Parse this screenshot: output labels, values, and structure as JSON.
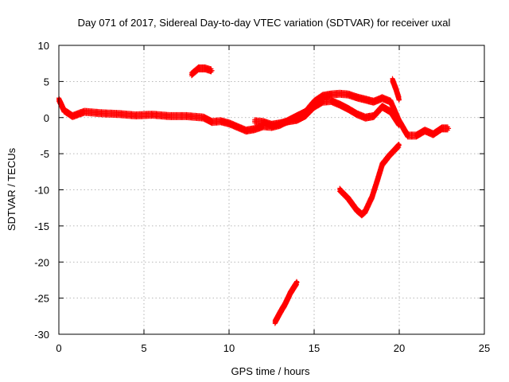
{
  "chart_data": {
    "type": "scatter",
    "title": "Day 071 of 2017, Sidereal Day-to-day VTEC variation (SDTVAR) for receiver uxal",
    "xlabel": "GPS time / hours",
    "ylabel": "SDTVAR / TECUs",
    "xlim": [
      0,
      25
    ],
    "ylim": [
      -30,
      10
    ],
    "xticks": [
      0,
      5,
      10,
      15,
      20,
      25
    ],
    "yticks": [
      -30,
      -25,
      -20,
      -15,
      -10,
      -5,
      0,
      5,
      10
    ],
    "grid": true,
    "marker": "+",
    "color": "#ff0000",
    "series": [
      {
        "name": "main-band",
        "x": [
          0,
          0.3,
          0.8,
          1.5,
          2.5,
          3.5,
          4.5,
          5.5,
          6.5,
          7.5,
          8.5,
          9.0,
          9.5,
          10.0,
          10.5,
          11.0,
          11.5,
          12.0,
          12.5,
          13.0,
          13.5,
          14.0,
          14.5,
          15.0,
          15.5,
          16.0,
          16.5,
          17.0,
          17.5,
          18.0,
          18.5,
          19.0,
          19.5,
          20.0,
          20.5,
          21.0,
          21.5,
          22.0,
          22.5,
          22.9
        ],
        "y": [
          2.5,
          1.0,
          0.2,
          0.8,
          0.6,
          0.5,
          0.3,
          0.4,
          0.2,
          0.2,
          0.0,
          -0.6,
          -0.5,
          -0.8,
          -1.3,
          -1.8,
          -1.6,
          -1.2,
          -1.3,
          -1.0,
          -0.4,
          0.2,
          0.8,
          2.2,
          3.0,
          3.2,
          3.3,
          3.2,
          2.8,
          2.5,
          2.2,
          2.7,
          2.2,
          -0.5,
          -2.5,
          -2.5,
          -1.8,
          -2.3,
          -1.5,
          -1.5
        ]
      },
      {
        "name": "lower-branch",
        "x": [
          11.5,
          12.0,
          12.5,
          13.0,
          13.5,
          14.0,
          14.5,
          15.0,
          15.5,
          16.0,
          16.5,
          17.0,
          17.5,
          18.0,
          18.5,
          19.0,
          19.5,
          20.0
        ],
        "y": [
          -0.5,
          -0.6,
          -1.0,
          -0.8,
          -0.5,
          -0.3,
          0.3,
          1.5,
          2.2,
          2.3,
          1.8,
          1.2,
          0.5,
          0.0,
          0.2,
          1.5,
          0.8,
          -1.0
        ]
      },
      {
        "name": "high-arc",
        "x": [
          7.8,
          8.2,
          8.6,
          9.0
        ],
        "y": [
          6.0,
          6.8,
          6.8,
          6.5
        ]
      },
      {
        "name": "negative-dip",
        "x": [
          16.5,
          17.0,
          17.5,
          17.8,
          18.0,
          18.4,
          18.7,
          19.0,
          19.4,
          19.8,
          20.0
        ],
        "y": [
          -10.0,
          -11.2,
          -12.8,
          -13.4,
          -13.0,
          -11.0,
          -8.8,
          -6.5,
          -5.3,
          -4.3,
          -3.8
        ]
      },
      {
        "name": "low-segment",
        "x": [
          12.7,
          13.0,
          13.3,
          13.6,
          14.0
        ],
        "y": [
          -28.3,
          -27.0,
          -25.8,
          -24.3,
          -22.8
        ]
      },
      {
        "name": "spike",
        "x": [
          19.6,
          19.8,
          20.0
        ],
        "y": [
          5.2,
          4.0,
          2.5
        ]
      }
    ]
  }
}
